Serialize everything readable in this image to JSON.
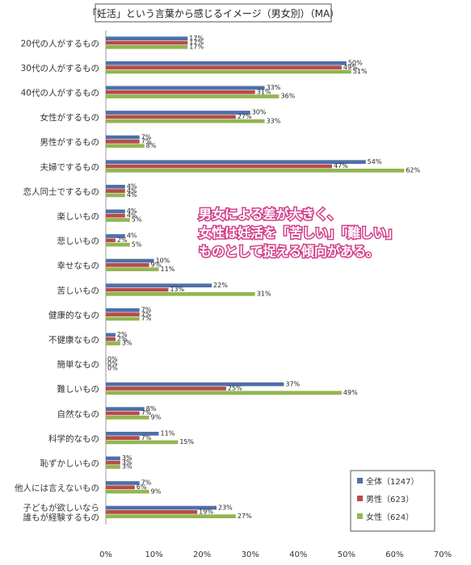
{
  "chart_data": {
    "type": "bar",
    "orientation": "horizontal",
    "title": "「妊活」という言葉から感じるイメージ（男女別）（MA）",
    "categories": [
      "20代の人がするもの",
      "30代の人がするもの",
      "40代の人がするもの",
      "女性がするもの",
      "男性がするもの",
      "夫婦でするもの",
      "恋人同士でするもの",
      "楽しいもの",
      "悲しいもの",
      "幸せなもの",
      "苦しいもの",
      "健康的なもの",
      "不健康なもの",
      "簡単なもの",
      "難しいもの",
      "自然なもの",
      "科学的なもの",
      "恥ずかしいもの",
      "他人には言えないもの",
      "子どもが欲しいなら\n誰もが経験するもの"
    ],
    "series": [
      {
        "name": "全体（1247）",
        "color": "#4f6fa8",
        "values": [
          17,
          50,
          33,
          30,
          7,
          54,
          4,
          4,
          4,
          10,
          22,
          7,
          2,
          0,
          37,
          8,
          11,
          3,
          7,
          23
        ],
        "labels": [
          "17%",
          "50%",
          "33%",
          "30%",
          "7%",
          "54%",
          "4%",
          "4%",
          "4%",
          "10%",
          "22%",
          "7%",
          "2%",
          "0%",
          "37%",
          "8%",
          "11%",
          "3%",
          "7%",
          "23%"
        ]
      },
      {
        "name": "男性（623）",
        "color": "#b84c47",
        "values": [
          17,
          49,
          31,
          27,
          7,
          47,
          4,
          4,
          2,
          9,
          13,
          7,
          2,
          0,
          25,
          7,
          7,
          3,
          6,
          19
        ],
        "labels": [
          "17%",
          "49%",
          "31%",
          "27%",
          "7%",
          "47%",
          "4%",
          "4%",
          "2%",
          "9%",
          "13%",
          "7%",
          "2%",
          "0%",
          "25%",
          "7%",
          "7%",
          "3%",
          "6%",
          "19%"
        ]
      },
      {
        "name": "女性（624）",
        "color": "#93b552",
        "values": [
          17,
          51,
          36,
          33,
          8,
          62,
          4,
          5,
          5,
          11,
          31,
          7,
          3,
          0,
          49,
          9,
          15,
          3,
          9,
          27
        ],
        "labels": [
          "17%",
          "51%",
          "36%",
          "33%",
          "8%",
          "62%",
          "4%",
          "5%",
          "5%",
          "11%",
          "31%",
          "7%",
          "3%",
          "0%",
          "49%",
          "9%",
          "15%",
          "3%",
          "9%",
          "27%"
        ]
      }
    ],
    "xlim": [
      0,
      70
    ],
    "xticks": [
      "0%",
      "10%",
      "20%",
      "30%",
      "40%",
      "50%",
      "60%",
      "70%"
    ],
    "grid": false,
    "legend_position": "bottom-right",
    "annotation": [
      "男女による差が大きく、",
      "女性は妊活を「苦しい」「難しい」",
      "ものとして捉える傾向がある。"
    ]
  }
}
